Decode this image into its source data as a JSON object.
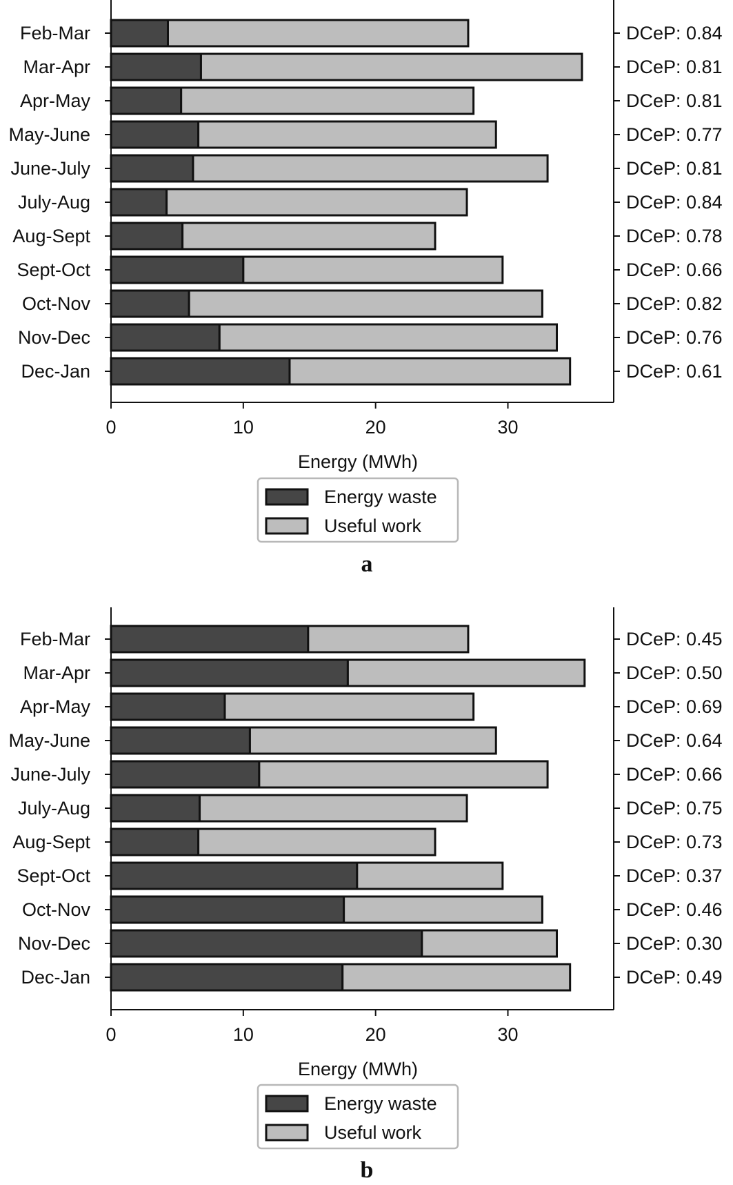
{
  "colors": {
    "waste": "#464646",
    "useful": "#bdbdbd",
    "edge": "#111111",
    "axis": "#111111",
    "legend_border": "#b8b8b8"
  },
  "chart_data": [
    {
      "type": "bar",
      "orientation": "horizontal",
      "stacked": true,
      "panel_label": "a",
      "xlabel": "Energy (MWh)",
      "xlim": [
        0,
        38
      ],
      "xticks": [
        0,
        10,
        20,
        30
      ],
      "categories": [
        "Feb-Mar",
        "Mar-Apr",
        "Apr-May",
        "May-June",
        "June-July",
        "July-Aug",
        "Aug-Sept",
        "Sept-Oct",
        "Oct-Nov",
        "Nov-Dec",
        "Dec-Jan"
      ],
      "series": [
        {
          "name": "Energy waste",
          "values": [
            4.3,
            6.8,
            5.3,
            6.6,
            6.2,
            4.2,
            5.4,
            10.0,
            5.9,
            8.2,
            13.5
          ]
        },
        {
          "name": "Useful work",
          "values": [
            22.7,
            28.8,
            22.1,
            22.5,
            26.8,
            22.7,
            19.1,
            19.6,
            26.7,
            25.5,
            21.2
          ]
        }
      ],
      "right_labels": [
        "DCeP: 0.84",
        "DCeP: 0.81",
        "DCeP: 0.81",
        "DCeP: 0.77",
        "DCeP: 0.81",
        "DCeP: 0.84",
        "DCeP: 0.78",
        "DCeP: 0.66",
        "DCeP: 0.82",
        "DCeP: 0.76",
        "DCeP: 0.61"
      ],
      "legend": {
        "position": "below",
        "entries": [
          "Energy waste",
          "Useful work"
        ]
      },
      "grid": false
    },
    {
      "type": "bar",
      "orientation": "horizontal",
      "stacked": true,
      "panel_label": "b",
      "xlabel": "Energy (MWh)",
      "xlim": [
        0,
        38
      ],
      "xticks": [
        0,
        10,
        20,
        30
      ],
      "categories": [
        "Feb-Mar",
        "Mar-Apr",
        "Apr-May",
        "May-June",
        "June-July",
        "July-Aug",
        "Aug-Sept",
        "Sept-Oct",
        "Oct-Nov",
        "Nov-Dec",
        "Dec-Jan"
      ],
      "series": [
        {
          "name": "Energy waste",
          "values": [
            14.9,
            17.9,
            8.6,
            10.5,
            11.2,
            6.7,
            6.6,
            18.6,
            17.6,
            23.5,
            17.5
          ]
        },
        {
          "name": "Useful work",
          "values": [
            12.1,
            17.9,
            18.8,
            18.6,
            21.8,
            20.2,
            17.9,
            11.0,
            15.0,
            10.2,
            17.2
          ]
        }
      ],
      "right_labels": [
        "DCeP: 0.45",
        "DCeP: 0.50",
        "DCeP: 0.69",
        "DCeP: 0.64",
        "DCeP: 0.66",
        "DCeP: 0.75",
        "DCeP: 0.73",
        "DCeP: 0.37",
        "DCeP: 0.46",
        "DCeP: 0.30",
        "DCeP: 0.49"
      ],
      "legend": {
        "position": "below",
        "entries": [
          "Energy waste",
          "Useful work"
        ]
      },
      "grid": false
    }
  ]
}
